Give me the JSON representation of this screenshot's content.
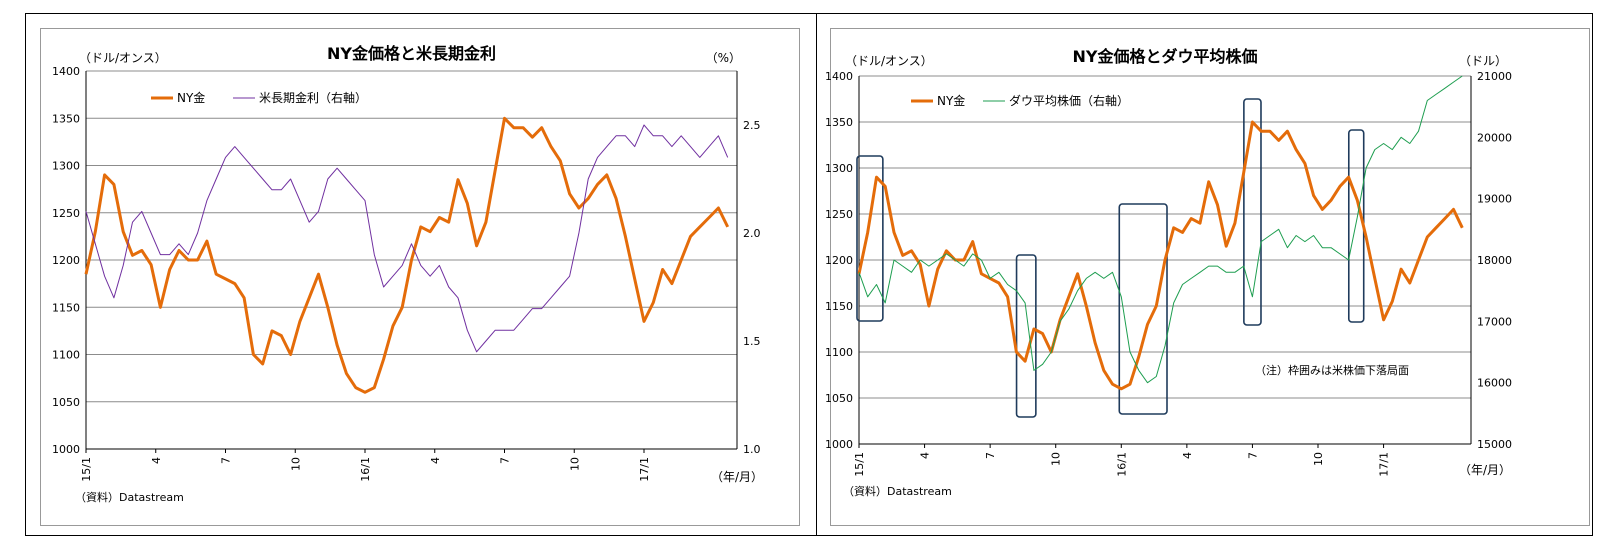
{
  "chart_data": [
    {
      "type": "line",
      "title": "NY金価格と米長期金利",
      "y_left_unit": "（ドル/オンス）",
      "y_right_unit": "（%）",
      "x_unit": "（年/月）",
      "source": "（資料）Datastream",
      "x_range": [
        0,
        28
      ],
      "x_tick_labels": [
        "15/1",
        "4",
        "7",
        "10",
        "16/1",
        "4",
        "7",
        "10",
        "17/1"
      ],
      "x_tick_positions": [
        0,
        3,
        6,
        9,
        12,
        15,
        18,
        21,
        24
      ],
      "y_left_range": [
        1000,
        1400
      ],
      "y_left_ticks": [
        "1000",
        "1050",
        "1100",
        "1150",
        "1200",
        "1250",
        "1300",
        "1350",
        "1400"
      ],
      "y_right_range": [
        1.0,
        2.75
      ],
      "y_right_ticks": [
        "1.0",
        "1.5",
        "2.0",
        "2.5"
      ],
      "grid": true,
      "legend_position": "top-left",
      "series": [
        {
          "name": "NY金",
          "axis": "left",
          "color": "#E46C0A",
          "x": [
            0,
            0.4,
            0.8,
            1.2,
            1.6,
            2,
            2.4,
            2.8,
            3.2,
            3.6,
            4,
            4.4,
            4.8,
            5.2,
            5.6,
            6,
            6.4,
            6.8,
            7.2,
            7.6,
            8,
            8.4,
            8.8,
            9.2,
            9.6,
            10,
            10.4,
            10.8,
            11.2,
            11.6,
            12,
            12.4,
            12.8,
            13.2,
            13.6,
            14,
            14.4,
            14.8,
            15.2,
            15.6,
            16,
            16.4,
            16.8,
            17.2,
            17.6,
            18,
            18.4,
            18.8,
            19.2,
            19.6,
            20,
            20.4,
            20.8,
            21.2,
            21.6,
            22,
            22.4,
            22.8,
            23.2,
            23.6,
            24,
            24.4,
            24.8,
            25.2,
            25.6,
            26,
            26.4,
            26.8,
            27.2,
            27.6
          ],
          "values": [
            1185,
            1230,
            1290,
            1280,
            1230,
            1205,
            1210,
            1195,
            1150,
            1190,
            1210,
            1200,
            1200,
            1220,
            1185,
            1180,
            1175,
            1160,
            1100,
            1090,
            1125,
            1120,
            1100,
            1135,
            1160,
            1185,
            1150,
            1110,
            1080,
            1065,
            1060,
            1065,
            1095,
            1130,
            1150,
            1200,
            1235,
            1230,
            1245,
            1240,
            1285,
            1260,
            1215,
            1240,
            1295,
            1350,
            1340,
            1340,
            1330,
            1340,
            1320,
            1305,
            1270,
            1255,
            1265,
            1280,
            1290,
            1265,
            1225,
            1180,
            1135,
            1155,
            1190,
            1175,
            1200,
            1225,
            1235,
            1245,
            1255,
            1235
          ]
        },
        {
          "name": "米長期金利（右軸）",
          "axis": "right",
          "color": "#7030A0",
          "x": [
            0,
            0.4,
            0.8,
            1.2,
            1.6,
            2,
            2.4,
            2.8,
            3.2,
            3.6,
            4,
            4.4,
            4.8,
            5.2,
            5.6,
            6,
            6.4,
            6.8,
            7.2,
            7.6,
            8,
            8.4,
            8.8,
            9.2,
            9.6,
            10,
            10.4,
            10.8,
            11.2,
            11.6,
            12,
            12.4,
            12.8,
            13.2,
            13.6,
            14,
            14.4,
            14.8,
            15.2,
            15.6,
            16,
            16.4,
            16.8,
            17.2,
            17.6,
            18,
            18.4,
            18.8,
            19.2,
            19.6,
            20,
            20.4,
            20.8,
            21.2,
            21.6,
            22,
            22.4,
            22.8,
            23.2,
            23.6,
            24,
            24.4,
            24.8,
            25.2,
            25.6,
            26,
            26.4,
            26.8,
            27.2,
            27.6
          ],
          "values": [
            2.1,
            1.95,
            1.8,
            1.7,
            1.85,
            2.05,
            2.1,
            2.0,
            1.9,
            1.9,
            1.95,
            1.9,
            2.0,
            2.15,
            2.25,
            2.35,
            2.4,
            2.35,
            2.3,
            2.25,
            2.2,
            2.2,
            2.25,
            2.15,
            2.05,
            2.1,
            2.25,
            2.3,
            2.25,
            2.2,
            2.15,
            1.9,
            1.75,
            1.8,
            1.85,
            1.95,
            1.85,
            1.8,
            1.85,
            1.75,
            1.7,
            1.55,
            1.45,
            1.5,
            1.55,
            1.55,
            1.55,
            1.6,
            1.65,
            1.65,
            1.7,
            1.75,
            1.8,
            2.0,
            2.25,
            2.35,
            2.4,
            2.45,
            2.45,
            2.4,
            2.5,
            2.45,
            2.45,
            2.4,
            2.45,
            2.4,
            2.35,
            2.4,
            2.45,
            2.35
          ]
        }
      ]
    },
    {
      "type": "line",
      "title": "NY金価格とダウ平均株価",
      "y_left_unit": "（ドル/オンス）",
      "y_right_unit": "（ドル）",
      "x_unit": "（年/月）",
      "source": "（資料）Datastream",
      "annotation": "（注）枠囲みは米株価下落局面",
      "x_range": [
        0,
        28
      ],
      "x_tick_labels": [
        "15/1",
        "4",
        "7",
        "10",
        "16/1",
        "4",
        "7",
        "10",
        "17/1"
      ],
      "x_tick_positions": [
        0,
        3,
        6,
        9,
        12,
        15,
        18,
        21,
        24
      ],
      "y_left_range": [
        1000,
        1400
      ],
      "y_left_ticks": [
        "1000",
        "1050",
        "1100",
        "1150",
        "1200",
        "1250",
        "1300",
        "1350",
        "1400"
      ],
      "y_right_range": [
        15000,
        21000
      ],
      "y_right_ticks": [
        "15000",
        "16000",
        "17000",
        "18000",
        "19000",
        "20000",
        "21000"
      ],
      "grid": true,
      "legend_position": "top-left",
      "highlight_periods": [
        [
          0,
          1
        ],
        [
          7.3,
          8
        ],
        [
          12,
          14
        ],
        [
          17.7,
          18.3
        ],
        [
          22.5,
          23
        ]
      ],
      "series": [
        {
          "name": "NY金",
          "axis": "left",
          "color": "#E46C0A",
          "x": [
            0,
            0.4,
            0.8,
            1.2,
            1.6,
            2,
            2.4,
            2.8,
            3.2,
            3.6,
            4,
            4.4,
            4.8,
            5.2,
            5.6,
            6,
            6.4,
            6.8,
            7.2,
            7.6,
            8,
            8.4,
            8.8,
            9.2,
            9.6,
            10,
            10.4,
            10.8,
            11.2,
            11.6,
            12,
            12.4,
            12.8,
            13.2,
            13.6,
            14,
            14.4,
            14.8,
            15.2,
            15.6,
            16,
            16.4,
            16.8,
            17.2,
            17.6,
            18,
            18.4,
            18.8,
            19.2,
            19.6,
            20,
            20.4,
            20.8,
            21.2,
            21.6,
            22,
            22.4,
            22.8,
            23.2,
            23.6,
            24,
            24.4,
            24.8,
            25.2,
            25.6,
            26,
            26.4,
            26.8,
            27.2,
            27.6
          ],
          "values": [
            1185,
            1230,
            1290,
            1280,
            1230,
            1205,
            1210,
            1195,
            1150,
            1190,
            1210,
            1200,
            1200,
            1220,
            1185,
            1180,
            1175,
            1160,
            1100,
            1090,
            1125,
            1120,
            1100,
            1135,
            1160,
            1185,
            1150,
            1110,
            1080,
            1065,
            1060,
            1065,
            1095,
            1130,
            1150,
            1200,
            1235,
            1230,
            1245,
            1240,
            1285,
            1260,
            1215,
            1240,
            1295,
            1350,
            1340,
            1340,
            1330,
            1340,
            1320,
            1305,
            1270,
            1255,
            1265,
            1280,
            1290,
            1265,
            1225,
            1180,
            1135,
            1155,
            1190,
            1175,
            1200,
            1225,
            1235,
            1245,
            1255,
            1235
          ]
        },
        {
          "name": "ダウ平均株価（右軸）",
          "axis": "right",
          "color": "#1E9E50",
          "x": [
            0,
            0.4,
            0.8,
            1.2,
            1.6,
            2,
            2.4,
            2.8,
            3.2,
            3.6,
            4,
            4.4,
            4.8,
            5.2,
            5.6,
            6,
            6.4,
            6.8,
            7.2,
            7.6,
            8,
            8.4,
            8.8,
            9.2,
            9.6,
            10,
            10.4,
            10.8,
            11.2,
            11.6,
            12,
            12.4,
            12.8,
            13.2,
            13.6,
            14,
            14.4,
            14.8,
            15.2,
            15.6,
            16,
            16.4,
            16.8,
            17.2,
            17.6,
            18,
            18.4,
            18.8,
            19.2,
            19.6,
            20,
            20.4,
            20.8,
            21.2,
            21.6,
            22,
            22.4,
            22.8,
            23.2,
            23.6,
            24,
            24.4,
            24.8,
            25.2,
            25.6,
            26,
            26.4,
            26.8,
            27.2,
            27.6
          ],
          "values": [
            17800,
            17400,
            17600,
            17300,
            18000,
            17900,
            17800,
            18000,
            17900,
            18000,
            18100,
            18000,
            17900,
            18100,
            18000,
            17700,
            17800,
            17600,
            17500,
            17300,
            16200,
            16300,
            16500,
            17000,
            17200,
            17500,
            17700,
            17800,
            17700,
            17800,
            17400,
            16500,
            16200,
            16000,
            16100,
            16600,
            17300,
            17600,
            17700,
            17800,
            17900,
            17900,
            17800,
            17800,
            17900,
            17400,
            18300,
            18400,
            18500,
            18200,
            18400,
            18300,
            18400,
            18200,
            18200,
            18100,
            18000,
            18700,
            19500,
            19800,
            19900,
            19800,
            20000,
            19900,
            20100,
            20600,
            20700,
            20800,
            20900,
            21000
          ]
        }
      ]
    }
  ]
}
